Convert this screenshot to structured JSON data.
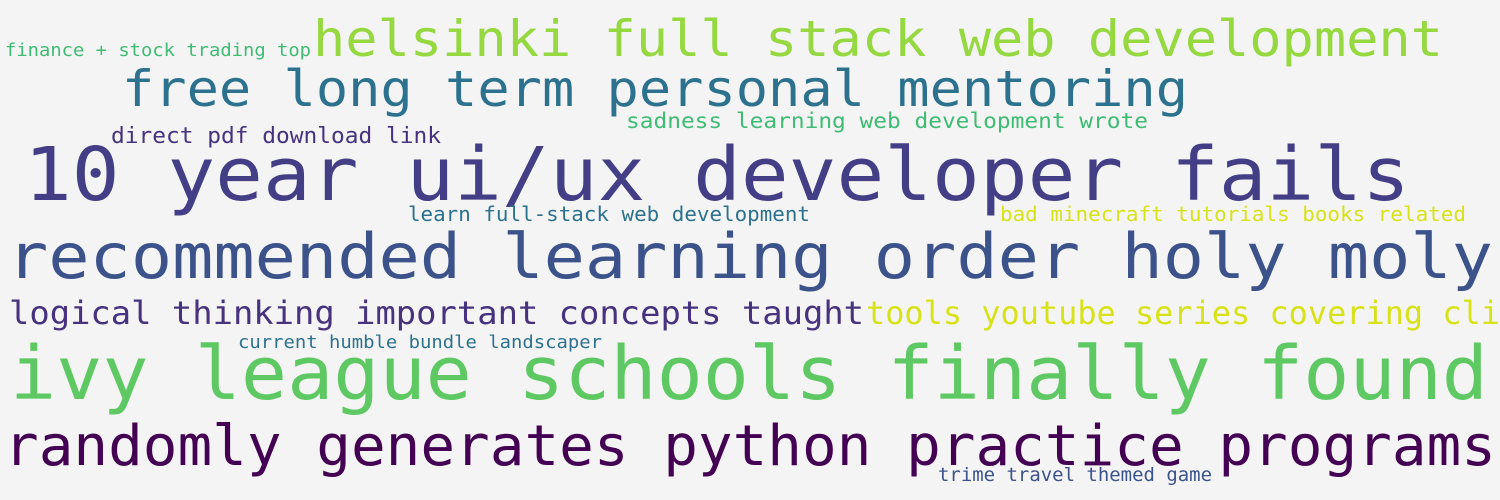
{
  "word_cloud": {
    "phrases": [
      {
        "text": "helsinki full stack web development",
        "color": "#95d840"
      },
      {
        "text": "finance + stock trading top",
        "color": "#3fbc73"
      },
      {
        "text": "free long term personal mentoring",
        "color": "#2c728e"
      },
      {
        "text": "sadness learning web development wrote",
        "color": "#3fbc73"
      },
      {
        "text": "direct pdf download link",
        "color": "#46327e"
      },
      {
        "text": "10 year ui/ux developer fails",
        "color": "#433e85"
      },
      {
        "text": "learn full-stack web development",
        "color": "#2c728e"
      },
      {
        "text": "bad minecraft tutorials books related",
        "color": "#d8e219"
      },
      {
        "text": "recommended learning order holy moly",
        "color": "#3b528b"
      },
      {
        "text": "logical thinking important concepts taught",
        "color": "#46327e"
      },
      {
        "text": "tools youtube series covering cli",
        "color": "#d8e219"
      },
      {
        "text": "current humble bundle landscaper",
        "color": "#2c728e"
      },
      {
        "text": "ivy league schools finally found",
        "color": "#5ec962"
      },
      {
        "text": "randomly generates python practice programs",
        "color": "#440154"
      },
      {
        "text": "trime travel themed game",
        "color": "#3b528b"
      }
    ]
  }
}
